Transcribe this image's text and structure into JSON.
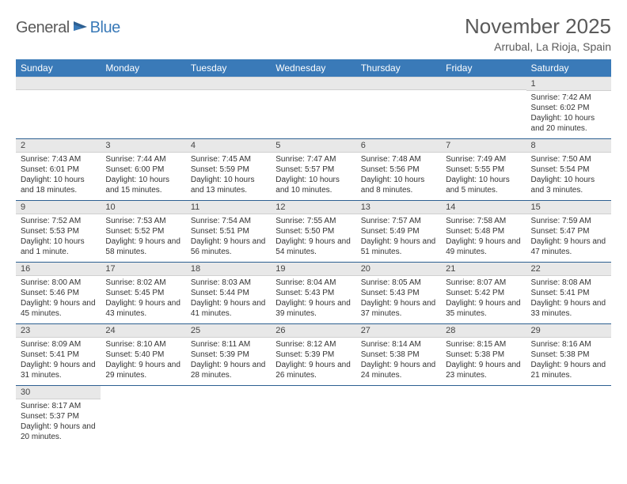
{
  "logo": {
    "text1": "General",
    "text2": "Blue"
  },
  "title": "November 2025",
  "location": "Arrubal, La Rioja, Spain",
  "day_headers": [
    "Sunday",
    "Monday",
    "Tuesday",
    "Wednesday",
    "Thursday",
    "Friday",
    "Saturday"
  ],
  "colors": {
    "header_bg": "#3a7ab8",
    "row_border": "#2d5f91",
    "daynum_bg": "#e8e8e8",
    "text_gray": "#5a5a5a"
  },
  "weeks": [
    [
      null,
      null,
      null,
      null,
      null,
      null,
      {
        "n": "1",
        "sunrise": "Sunrise: 7:42 AM",
        "sunset": "Sunset: 6:02 PM",
        "daylight": "Daylight: 10 hours and 20 minutes."
      }
    ],
    [
      {
        "n": "2",
        "sunrise": "Sunrise: 7:43 AM",
        "sunset": "Sunset: 6:01 PM",
        "daylight": "Daylight: 10 hours and 18 minutes."
      },
      {
        "n": "3",
        "sunrise": "Sunrise: 7:44 AM",
        "sunset": "Sunset: 6:00 PM",
        "daylight": "Daylight: 10 hours and 15 minutes."
      },
      {
        "n": "4",
        "sunrise": "Sunrise: 7:45 AM",
        "sunset": "Sunset: 5:59 PM",
        "daylight": "Daylight: 10 hours and 13 minutes."
      },
      {
        "n": "5",
        "sunrise": "Sunrise: 7:47 AM",
        "sunset": "Sunset: 5:57 PM",
        "daylight": "Daylight: 10 hours and 10 minutes."
      },
      {
        "n": "6",
        "sunrise": "Sunrise: 7:48 AM",
        "sunset": "Sunset: 5:56 PM",
        "daylight": "Daylight: 10 hours and 8 minutes."
      },
      {
        "n": "7",
        "sunrise": "Sunrise: 7:49 AM",
        "sunset": "Sunset: 5:55 PM",
        "daylight": "Daylight: 10 hours and 5 minutes."
      },
      {
        "n": "8",
        "sunrise": "Sunrise: 7:50 AM",
        "sunset": "Sunset: 5:54 PM",
        "daylight": "Daylight: 10 hours and 3 minutes."
      }
    ],
    [
      {
        "n": "9",
        "sunrise": "Sunrise: 7:52 AM",
        "sunset": "Sunset: 5:53 PM",
        "daylight": "Daylight: 10 hours and 1 minute."
      },
      {
        "n": "10",
        "sunrise": "Sunrise: 7:53 AM",
        "sunset": "Sunset: 5:52 PM",
        "daylight": "Daylight: 9 hours and 58 minutes."
      },
      {
        "n": "11",
        "sunrise": "Sunrise: 7:54 AM",
        "sunset": "Sunset: 5:51 PM",
        "daylight": "Daylight: 9 hours and 56 minutes."
      },
      {
        "n": "12",
        "sunrise": "Sunrise: 7:55 AM",
        "sunset": "Sunset: 5:50 PM",
        "daylight": "Daylight: 9 hours and 54 minutes."
      },
      {
        "n": "13",
        "sunrise": "Sunrise: 7:57 AM",
        "sunset": "Sunset: 5:49 PM",
        "daylight": "Daylight: 9 hours and 51 minutes."
      },
      {
        "n": "14",
        "sunrise": "Sunrise: 7:58 AM",
        "sunset": "Sunset: 5:48 PM",
        "daylight": "Daylight: 9 hours and 49 minutes."
      },
      {
        "n": "15",
        "sunrise": "Sunrise: 7:59 AM",
        "sunset": "Sunset: 5:47 PM",
        "daylight": "Daylight: 9 hours and 47 minutes."
      }
    ],
    [
      {
        "n": "16",
        "sunrise": "Sunrise: 8:00 AM",
        "sunset": "Sunset: 5:46 PM",
        "daylight": "Daylight: 9 hours and 45 minutes."
      },
      {
        "n": "17",
        "sunrise": "Sunrise: 8:02 AM",
        "sunset": "Sunset: 5:45 PM",
        "daylight": "Daylight: 9 hours and 43 minutes."
      },
      {
        "n": "18",
        "sunrise": "Sunrise: 8:03 AM",
        "sunset": "Sunset: 5:44 PM",
        "daylight": "Daylight: 9 hours and 41 minutes."
      },
      {
        "n": "19",
        "sunrise": "Sunrise: 8:04 AM",
        "sunset": "Sunset: 5:43 PM",
        "daylight": "Daylight: 9 hours and 39 minutes."
      },
      {
        "n": "20",
        "sunrise": "Sunrise: 8:05 AM",
        "sunset": "Sunset: 5:43 PM",
        "daylight": "Daylight: 9 hours and 37 minutes."
      },
      {
        "n": "21",
        "sunrise": "Sunrise: 8:07 AM",
        "sunset": "Sunset: 5:42 PM",
        "daylight": "Daylight: 9 hours and 35 minutes."
      },
      {
        "n": "22",
        "sunrise": "Sunrise: 8:08 AM",
        "sunset": "Sunset: 5:41 PM",
        "daylight": "Daylight: 9 hours and 33 minutes."
      }
    ],
    [
      {
        "n": "23",
        "sunrise": "Sunrise: 8:09 AM",
        "sunset": "Sunset: 5:41 PM",
        "daylight": "Daylight: 9 hours and 31 minutes."
      },
      {
        "n": "24",
        "sunrise": "Sunrise: 8:10 AM",
        "sunset": "Sunset: 5:40 PM",
        "daylight": "Daylight: 9 hours and 29 minutes."
      },
      {
        "n": "25",
        "sunrise": "Sunrise: 8:11 AM",
        "sunset": "Sunset: 5:39 PM",
        "daylight": "Daylight: 9 hours and 28 minutes."
      },
      {
        "n": "26",
        "sunrise": "Sunrise: 8:12 AM",
        "sunset": "Sunset: 5:39 PM",
        "daylight": "Daylight: 9 hours and 26 minutes."
      },
      {
        "n": "27",
        "sunrise": "Sunrise: 8:14 AM",
        "sunset": "Sunset: 5:38 PM",
        "daylight": "Daylight: 9 hours and 24 minutes."
      },
      {
        "n": "28",
        "sunrise": "Sunrise: 8:15 AM",
        "sunset": "Sunset: 5:38 PM",
        "daylight": "Daylight: 9 hours and 23 minutes."
      },
      {
        "n": "29",
        "sunrise": "Sunrise: 8:16 AM",
        "sunset": "Sunset: 5:38 PM",
        "daylight": "Daylight: 9 hours and 21 minutes."
      }
    ],
    [
      {
        "n": "30",
        "sunrise": "Sunrise: 8:17 AM",
        "sunset": "Sunset: 5:37 PM",
        "daylight": "Daylight: 9 hours and 20 minutes."
      },
      null,
      null,
      null,
      null,
      null,
      null
    ]
  ]
}
